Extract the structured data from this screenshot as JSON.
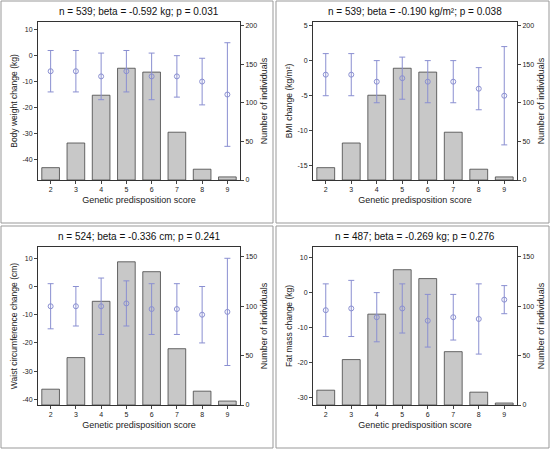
{
  "chart_data": [
    {
      "type": "bar",
      "title": "n = 539; beta = -0.592 kg; p = 0.031",
      "xlabel": "Genetic predisposition score",
      "ylabel": "Body weight change (kg)",
      "y2label": "Number of individuals",
      "x": [
        2,
        3,
        4,
        5,
        6,
        7,
        8,
        9
      ],
      "xlim": [
        1.5,
        9.5
      ],
      "xticks": [
        2,
        3,
        4,
        5,
        6,
        7,
        8,
        9
      ],
      "ylim": [
        -48,
        13
      ],
      "yticks": [
        10,
        0,
        -10,
        -20,
        -30,
        -40
      ],
      "y2lim": [
        0,
        205
      ],
      "y2ticks": [
        0,
        50,
        100,
        150,
        200
      ],
      "series": [
        {
          "type": "bar",
          "axis": "y2",
          "color": "#c8c8c8",
          "values": [
            16,
            48,
            110,
            145,
            140,
            62,
            14,
            4
          ]
        },
        {
          "type": "scatter",
          "marker": "circle-open",
          "color": "#8a8fd1",
          "values": [
            -6,
            -6,
            -8,
            -6,
            -8,
            -8,
            -10,
            -15
          ],
          "errors": [
            8,
            8,
            9,
            8,
            9,
            8,
            9,
            20
          ]
        }
      ]
    },
    {
      "type": "bar",
      "title": "n = 539; beta = -0.190 kg/m²; p = 0.038",
      "xlabel": "Genetic predisposition score",
      "ylabel": "BMI change (kg/m²)",
      "y2label": "Number of individuals",
      "x": [
        2,
        3,
        4,
        5,
        6,
        7,
        8,
        9
      ],
      "xlim": [
        1.5,
        9.5
      ],
      "xticks": [
        2,
        3,
        4,
        5,
        6,
        7,
        8,
        9
      ],
      "ylim": [
        -17,
        5.5
      ],
      "yticks": [
        5,
        0,
        -5,
        -10,
        -15
      ],
      "y2lim": [
        0,
        205
      ],
      "y2ticks": [
        0,
        50,
        100,
        150,
        200
      ],
      "series": [
        {
          "type": "bar",
          "axis": "y2",
          "color": "#c8c8c8",
          "values": [
            16,
            48,
            110,
            145,
            140,
            62,
            14,
            4
          ]
        },
        {
          "type": "scatter",
          "marker": "circle-open",
          "color": "#8a8fd1",
          "values": [
            -2,
            -2,
            -3,
            -2.5,
            -3,
            -3,
            -4,
            -5
          ],
          "errors": [
            3,
            3,
            3,
            3,
            3,
            3,
            3,
            7
          ]
        }
      ]
    },
    {
      "type": "bar",
      "title": "n = 524; beta = -0.336 cm; p = 0.241",
      "xlabel": "Genetic predisposition score",
      "ylabel": "Waist circumference change (cm)",
      "y2label": "Number of individuals",
      "x": [
        2,
        3,
        4,
        5,
        6,
        7,
        8,
        9
      ],
      "xlim": [
        1.5,
        9.5
      ],
      "xticks": [
        2,
        3,
        4,
        5,
        6,
        7,
        8,
        9
      ],
      "ylim": [
        -42,
        14
      ],
      "yticks": [
        10,
        0,
        -10,
        -20,
        -30,
        -40
      ],
      "y2lim": [
        0,
        160
      ],
      "y2ticks": [
        0,
        50,
        100,
        150
      ],
      "series": [
        {
          "type": "bar",
          "axis": "y2",
          "color": "#c8c8c8",
          "values": [
            16,
            48,
            105,
            145,
            135,
            57,
            14,
            4
          ]
        },
        {
          "type": "scatter",
          "marker": "circle-open",
          "color": "#8a8fd1",
          "values": [
            -7,
            -7,
            -7,
            -6,
            -8,
            -8,
            -10,
            -9
          ],
          "errors": [
            8,
            7,
            10,
            8,
            9,
            9,
            10,
            19
          ]
        }
      ]
    },
    {
      "type": "bar",
      "title": "n = 487; beta = -0.269 kg; p = 0.276",
      "xlabel": "Genetic predisposition score",
      "ylabel": "Fat mass change (kg)",
      "y2label": "Number of individuals",
      "x": [
        2,
        3,
        4,
        5,
        6,
        7,
        8,
        9
      ],
      "xlim": [
        1.5,
        9.5
      ],
      "xticks": [
        2,
        3,
        4,
        5,
        6,
        7,
        8,
        9
      ],
      "ylim": [
        -32,
        13
      ],
      "yticks": [
        10,
        0,
        -10,
        -20,
        -30
      ],
      "y2lim": [
        0,
        160
      ],
      "y2ticks": [
        0,
        50,
        100,
        150
      ],
      "series": [
        {
          "type": "bar",
          "axis": "y2",
          "color": "#c8c8c8",
          "values": [
            15,
            46,
            92,
            137,
            128,
            54,
            13,
            2
          ]
        },
        {
          "type": "scatter",
          "marker": "circle-open",
          "color": "#8a8fd1",
          "values": [
            -5,
            -4.5,
            -7,
            -4.5,
            -8,
            -7,
            -7.5,
            -2
          ],
          "errors": [
            7.5,
            8,
            7,
            7,
            7.5,
            6.5,
            10,
            4
          ]
        }
      ]
    }
  ]
}
